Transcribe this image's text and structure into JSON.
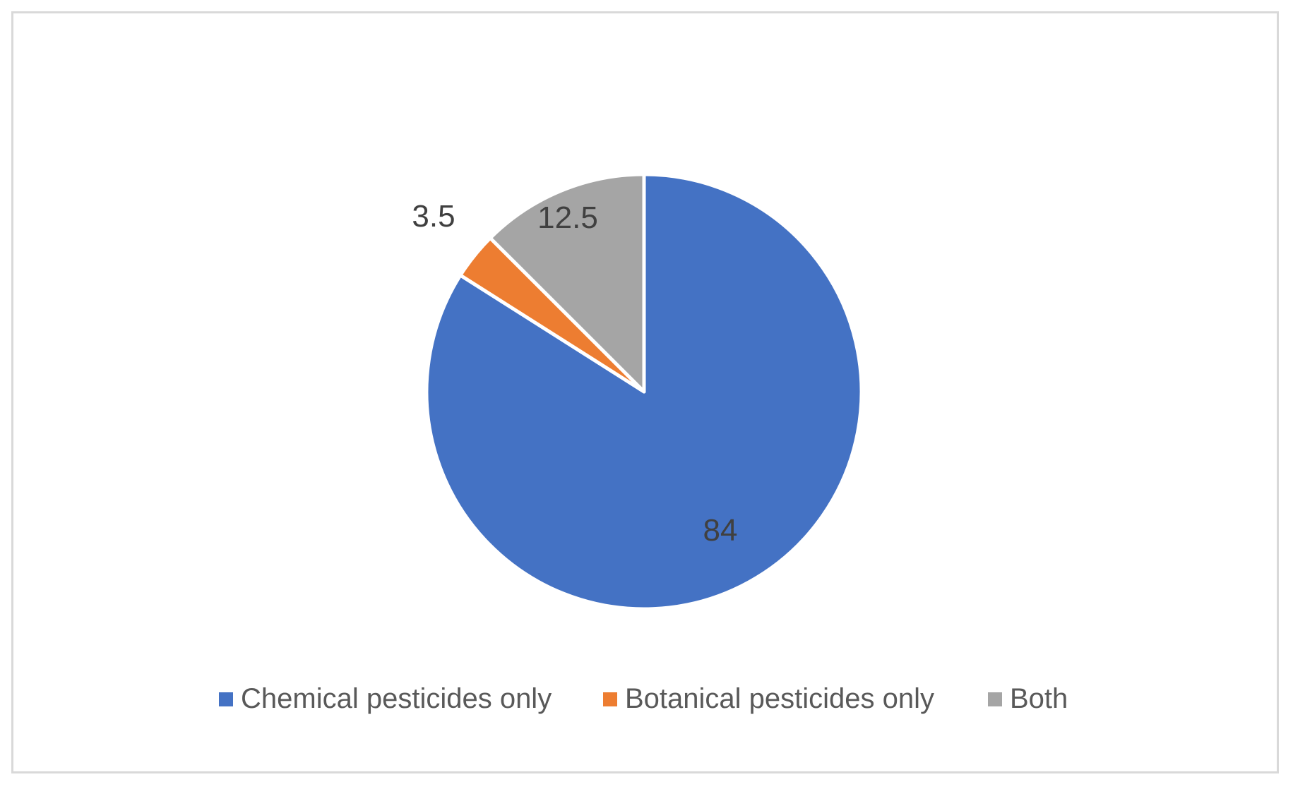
{
  "chart_data": {
    "type": "pie",
    "title": "",
    "start_angle_deg": 0,
    "direction": "clockwise",
    "slice_border_color": "#ffffff",
    "legend_position": "bottom",
    "slices": [
      {
        "label": "Chemical pesticides only",
        "value": 84,
        "display": "84",
        "color": "#4472C4"
      },
      {
        "label": "Botanical pesticides only",
        "value": 3.5,
        "display": "3.5",
        "color": "#ED7D31"
      },
      {
        "label": "Both",
        "value": 12.5,
        "display": "12.5",
        "color": "#A5A5A5"
      }
    ]
  }
}
